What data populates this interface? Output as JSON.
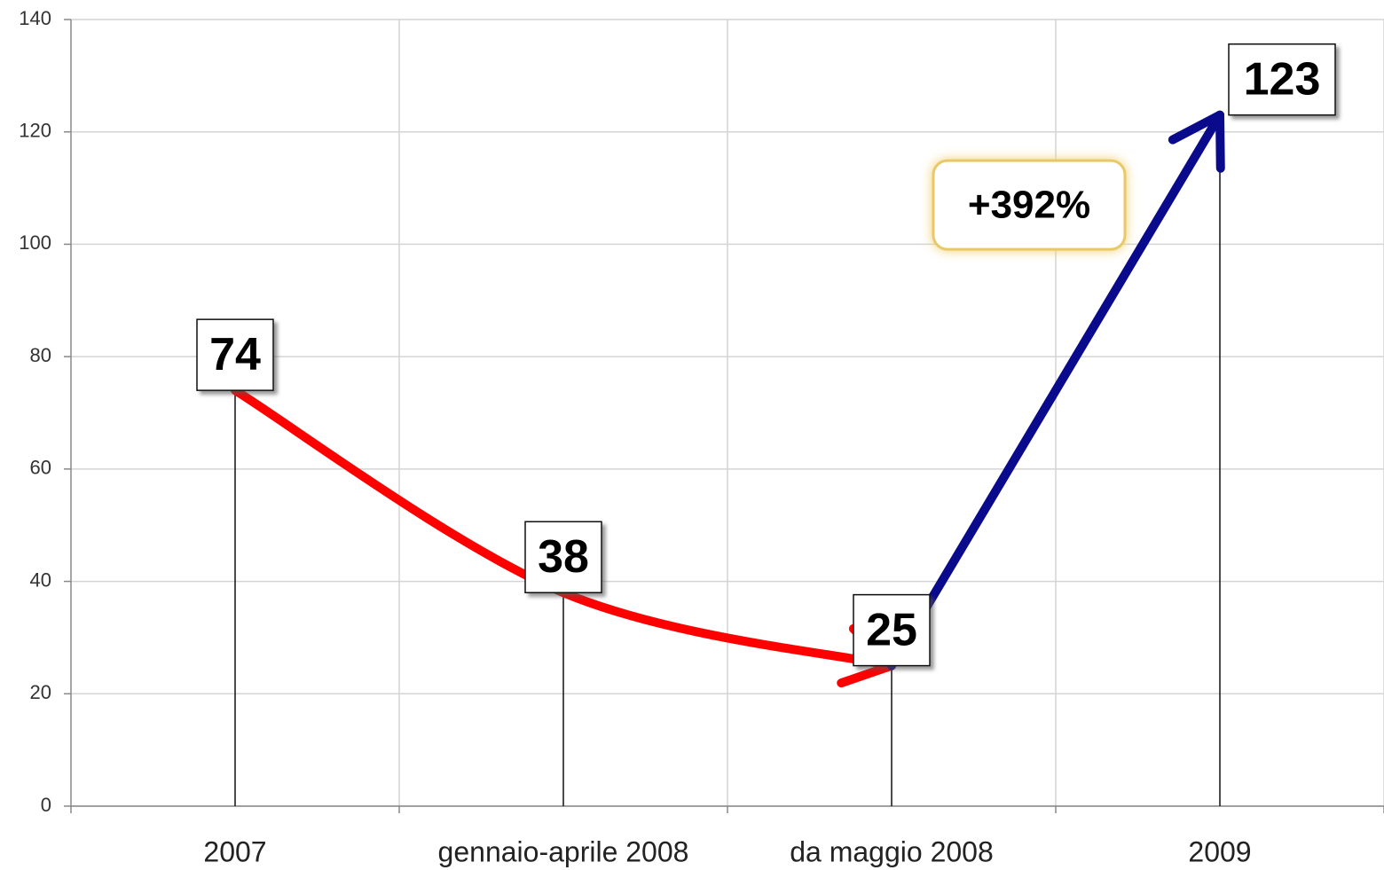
{
  "chart_data": {
    "type": "line",
    "categories": [
      "2007",
      "gennaio-aprile 2008",
      "da maggio 2008",
      "2009"
    ],
    "values": [
      74,
      38,
      25,
      123
    ],
    "segment_colors": [
      "#ff0000",
      "#ff0000",
      "#0a0a8c"
    ],
    "annotation": "+392%",
    "ylim": [
      0,
      140
    ],
    "yticks": [
      0,
      20,
      40,
      60,
      80,
      100,
      120,
      140
    ],
    "grid": true
  }
}
